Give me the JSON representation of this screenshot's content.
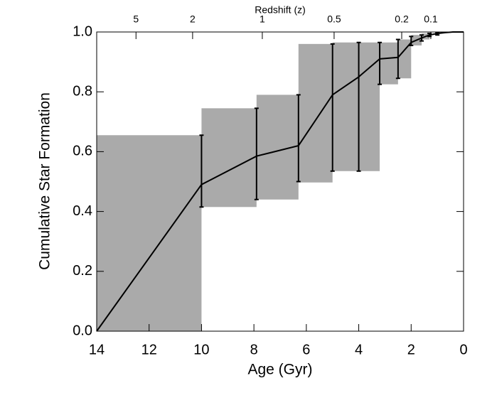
{
  "chart_data": {
    "type": "line",
    "xlabel": "Age (Gyr)",
    "ylabel": "Cumulative Star Formation",
    "x2label": "Redshift (z)",
    "x": [
      14,
      10,
      7.9,
      6.3,
      5.0,
      4.0,
      3.2,
      2.5,
      2.0,
      1.6,
      1.3,
      1.0,
      0.7,
      0.4,
      0
    ],
    "values": [
      0,
      0.49,
      0.585,
      0.62,
      0.79,
      0.85,
      0.91,
      0.915,
      0.965,
      0.98,
      0.99,
      0.995,
      0.998,
      1.0,
      1.0
    ],
    "err_low": [
      null,
      0.415,
      0.44,
      0.5,
      0.535,
      0.535,
      0.825,
      0.845,
      0.955,
      0.97,
      0.985,
      0.99,
      null,
      null,
      null
    ],
    "err_high": [
      null,
      0.655,
      0.745,
      0.79,
      0.96,
      0.965,
      0.965,
      0.975,
      0.985,
      0.99,
      0.995,
      0.998,
      null,
      null,
      null
    ],
    "bins": [
      {
        "x_start": 14,
        "x_end": 10,
        "low": 0,
        "high": 0.655
      },
      {
        "x_start": 10,
        "x_end": 7.9,
        "low": 0.415,
        "high": 0.745
      },
      {
        "x_start": 7.9,
        "x_end": 6.3,
        "low": 0.44,
        "high": 0.79
      },
      {
        "x_start": 6.3,
        "x_end": 5.0,
        "low": 0.497,
        "high": 0.96
      },
      {
        "x_start": 5.0,
        "x_end": 3.2,
        "low": 0.535,
        "high": 0.965
      },
      {
        "x_start": 3.2,
        "x_end": 2.5,
        "low": 0.825,
        "high": 0.965
      },
      {
        "x_start": 2.5,
        "x_end": 2.0,
        "low": 0.845,
        "high": 0.975
      },
      {
        "x_start": 2.0,
        "x_end": 1.6,
        "low": 0.955,
        "high": 0.99
      },
      {
        "x_start": 1.6,
        "x_end": 1.3,
        "low": 0.975,
        "high": 0.995
      }
    ],
    "line_color": "#000000",
    "bin_color": "#aaaaaa",
    "xlim": [
      14,
      0
    ],
    "ylim": [
      0,
      1.0
    ],
    "xticks": [
      14,
      12,
      10,
      8,
      6,
      4,
      2,
      0
    ],
    "yticks": [
      {
        "value": 0,
        "label": "0.0"
      },
      0.2,
      0.4,
      0.6,
      0.8,
      {
        "value": 1.0,
        "label": "1.0"
      }
    ],
    "x2ticks": [
      {
        "value": 12.5,
        "label": "5"
      },
      {
        "value": 10.34,
        "label": "2"
      },
      {
        "value": 7.68,
        "label": "1"
      },
      {
        "value": 4.94,
        "label": "0.5"
      },
      {
        "value": 2.36,
        "label": "0.2"
      },
      {
        "value": 1.25,
        "label": "0.1"
      }
    ]
  }
}
